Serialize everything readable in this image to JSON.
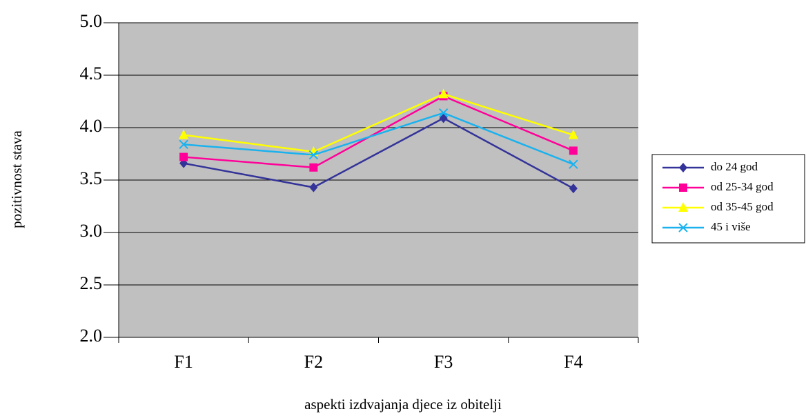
{
  "chart_data": {
    "type": "line",
    "categories": [
      "F1",
      "F2",
      "F3",
      "F4"
    ],
    "series": [
      {
        "name": "do 24 god",
        "color": "#333399",
        "marker": "diamond",
        "values": [
          3.66,
          3.43,
          4.09,
          3.42
        ]
      },
      {
        "name": "od 25-34 god",
        "color": "#ff0099",
        "marker": "square",
        "values": [
          3.72,
          3.62,
          4.3,
          3.78
        ]
      },
      {
        "name": "od 35-45 god",
        "color": "#ffff00",
        "marker": "triangle",
        "values": [
          3.93,
          3.77,
          4.32,
          3.93
        ]
      },
      {
        "name": "45 i više",
        "color": "#1ab2ee",
        "marker": "x",
        "values": [
          3.84,
          3.74,
          4.14,
          3.65
        ]
      }
    ],
    "ylim": [
      2,
      5
    ],
    "yticks": [
      {
        "value": 2,
        "label": "2.0"
      },
      {
        "value": 2.5,
        "label": "2.5"
      },
      {
        "value": 3,
        "label": "3.0"
      },
      {
        "value": 3.5,
        "label": "3.5"
      },
      {
        "value": 4,
        "label": "4.0"
      },
      {
        "value": 4.5,
        "label": "4.5"
      },
      {
        "value": 5,
        "label": "5.0"
      }
    ],
    "grid": true,
    "x_label": "aspekti izdvajanja djece iz obitelji",
    "y_label": "pozitivnost stava",
    "legend": "right"
  }
}
